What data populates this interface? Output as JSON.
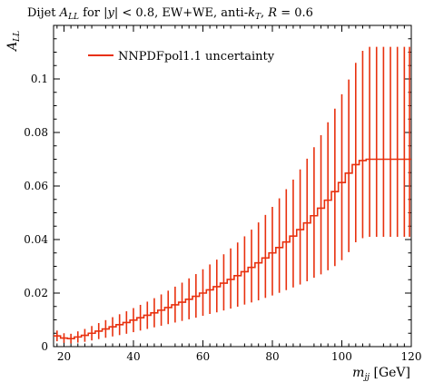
{
  "chart_data": {
    "type": "line",
    "title": "Dijet A_LL for |y| < 0.8, EW+WE, anti-k_T, R = 0.6",
    "title_parts": {
      "pre": "Dijet ",
      "A": "A",
      "sub": "LL",
      "mid": " for |",
      "y": "y",
      "post1": "| < 0.8, EW+WE, anti-",
      "k": "k",
      "ksub": "T",
      "post2": ", ",
      "R": "R",
      "post3": " = 0.6"
    },
    "ylabel_main": "A",
    "ylabel_sub": "LL",
    "xlabel_main": "m",
    "xlabel_sub": "jj",
    "xlabel_unit": " [GeV]",
    "xlim": [
      17,
      120
    ],
    "ylim": [
      0,
      0.12
    ],
    "xticks": [
      20,
      40,
      60,
      80,
      100,
      120
    ],
    "yticks": [
      0,
      0.02,
      0.04,
      0.06,
      0.08,
      0.1
    ],
    "ytick_labels": [
      "0",
      "0.02",
      "0.04",
      "0.06",
      "0.08",
      "0.1"
    ],
    "legend": {
      "placement": "top-left",
      "label": "NNPDFpol1.1 uncertainty"
    },
    "bin_width": 2,
    "bin_start": 17,
    "series": [
      {
        "name": "NNPDFpol1.1 uncertainty",
        "color": "#e8300e",
        "central": [
          0.004,
          0.0032,
          0.003,
          0.0036,
          0.0042,
          0.005,
          0.0058,
          0.0066,
          0.0074,
          0.0082,
          0.009,
          0.0099,
          0.0108,
          0.0117,
          0.0126,
          0.0136,
          0.0146,
          0.0156,
          0.0166,
          0.0177,
          0.0188,
          0.02,
          0.0212,
          0.0224,
          0.0237,
          0.0251,
          0.0265,
          0.028,
          0.0296,
          0.0313,
          0.0331,
          0.035,
          0.037,
          0.0391,
          0.0413,
          0.0437,
          0.0462,
          0.0489,
          0.0517,
          0.0547,
          0.0579,
          0.0613,
          0.0648,
          0.068,
          0.0695,
          0.07,
          0.07,
          0.07,
          0.07,
          0.07,
          0.07,
          0.07
        ],
        "err_low": [
          0.002,
          0.0018,
          0.0018,
          0.0021,
          0.0024,
          0.0027,
          0.003,
          0.0033,
          0.0036,
          0.0039,
          0.0042,
          0.0045,
          0.0048,
          0.0051,
          0.0054,
          0.0058,
          0.0062,
          0.0066,
          0.007,
          0.0075,
          0.008,
          0.0085,
          0.009,
          0.0096,
          0.0102,
          0.0109,
          0.0116,
          0.0123,
          0.0131,
          0.014,
          0.0149,
          0.0159,
          0.0169,
          0.018,
          0.0192,
          0.0205,
          0.0218,
          0.0232,
          0.0247,
          0.0262,
          0.0278,
          0.029,
          0.0295,
          0.029,
          0.029,
          0.029,
          0.029,
          0.029,
          0.029,
          0.029,
          0.029,
          0.029
        ],
        "err_high": [
          0.002,
          0.0018,
          0.0018,
          0.0021,
          0.0024,
          0.0027,
          0.003,
          0.0033,
          0.0036,
          0.0039,
          0.0042,
          0.0045,
          0.0048,
          0.0051,
          0.0055,
          0.0059,
          0.0063,
          0.0068,
          0.0073,
          0.0078,
          0.0083,
          0.0089,
          0.0095,
          0.0101,
          0.0108,
          0.0116,
          0.0124,
          0.0132,
          0.0141,
          0.0151,
          0.0161,
          0.0172,
          0.0184,
          0.0197,
          0.0211,
          0.0225,
          0.024,
          0.0256,
          0.0273,
          0.0291,
          0.031,
          0.033,
          0.035,
          0.038,
          0.041,
          0.042,
          0.042,
          0.042,
          0.042,
          0.042,
          0.042,
          0.042
        ]
      }
    ]
  }
}
